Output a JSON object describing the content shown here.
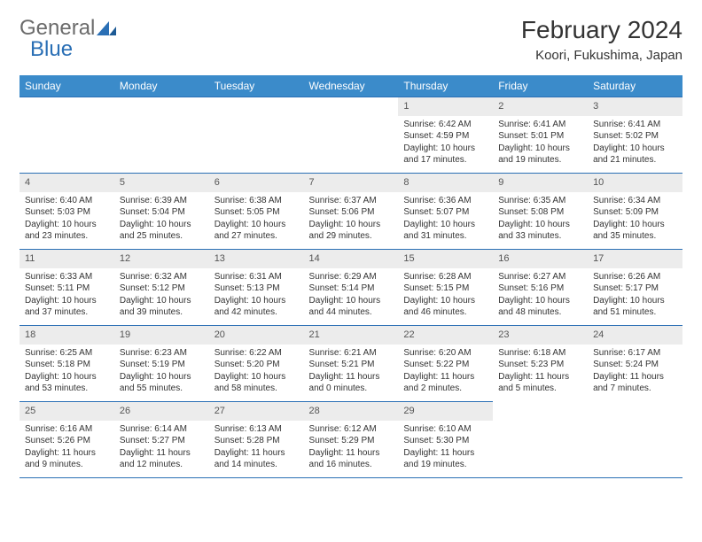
{
  "brand": {
    "part1": "General",
    "part2": "Blue"
  },
  "title": "February 2024",
  "location": "Koori, Fukushima, Japan",
  "colors": {
    "header_bg": "#3b8bca",
    "header_text": "#ffffff",
    "border": "#2a6fb5",
    "daynum_bg": "#ececec",
    "text": "#333333",
    "brand_gray": "#6b6b6b",
    "brand_blue": "#2a6fb5"
  },
  "weekdays": [
    "Sunday",
    "Monday",
    "Tuesday",
    "Wednesday",
    "Thursday",
    "Friday",
    "Saturday"
  ],
  "weeks": [
    [
      null,
      null,
      null,
      null,
      {
        "n": "1",
        "sr": "Sunrise: 6:42 AM",
        "ss": "Sunset: 4:59 PM",
        "dl": "Daylight: 10 hours and 17 minutes."
      },
      {
        "n": "2",
        "sr": "Sunrise: 6:41 AM",
        "ss": "Sunset: 5:01 PM",
        "dl": "Daylight: 10 hours and 19 minutes."
      },
      {
        "n": "3",
        "sr": "Sunrise: 6:41 AM",
        "ss": "Sunset: 5:02 PM",
        "dl": "Daylight: 10 hours and 21 minutes."
      }
    ],
    [
      {
        "n": "4",
        "sr": "Sunrise: 6:40 AM",
        "ss": "Sunset: 5:03 PM",
        "dl": "Daylight: 10 hours and 23 minutes."
      },
      {
        "n": "5",
        "sr": "Sunrise: 6:39 AM",
        "ss": "Sunset: 5:04 PM",
        "dl": "Daylight: 10 hours and 25 minutes."
      },
      {
        "n": "6",
        "sr": "Sunrise: 6:38 AM",
        "ss": "Sunset: 5:05 PM",
        "dl": "Daylight: 10 hours and 27 minutes."
      },
      {
        "n": "7",
        "sr": "Sunrise: 6:37 AM",
        "ss": "Sunset: 5:06 PM",
        "dl": "Daylight: 10 hours and 29 minutes."
      },
      {
        "n": "8",
        "sr": "Sunrise: 6:36 AM",
        "ss": "Sunset: 5:07 PM",
        "dl": "Daylight: 10 hours and 31 minutes."
      },
      {
        "n": "9",
        "sr": "Sunrise: 6:35 AM",
        "ss": "Sunset: 5:08 PM",
        "dl": "Daylight: 10 hours and 33 minutes."
      },
      {
        "n": "10",
        "sr": "Sunrise: 6:34 AM",
        "ss": "Sunset: 5:09 PM",
        "dl": "Daylight: 10 hours and 35 minutes."
      }
    ],
    [
      {
        "n": "11",
        "sr": "Sunrise: 6:33 AM",
        "ss": "Sunset: 5:11 PM",
        "dl": "Daylight: 10 hours and 37 minutes."
      },
      {
        "n": "12",
        "sr": "Sunrise: 6:32 AM",
        "ss": "Sunset: 5:12 PM",
        "dl": "Daylight: 10 hours and 39 minutes."
      },
      {
        "n": "13",
        "sr": "Sunrise: 6:31 AM",
        "ss": "Sunset: 5:13 PM",
        "dl": "Daylight: 10 hours and 42 minutes."
      },
      {
        "n": "14",
        "sr": "Sunrise: 6:29 AM",
        "ss": "Sunset: 5:14 PM",
        "dl": "Daylight: 10 hours and 44 minutes."
      },
      {
        "n": "15",
        "sr": "Sunrise: 6:28 AM",
        "ss": "Sunset: 5:15 PM",
        "dl": "Daylight: 10 hours and 46 minutes."
      },
      {
        "n": "16",
        "sr": "Sunrise: 6:27 AM",
        "ss": "Sunset: 5:16 PM",
        "dl": "Daylight: 10 hours and 48 minutes."
      },
      {
        "n": "17",
        "sr": "Sunrise: 6:26 AM",
        "ss": "Sunset: 5:17 PM",
        "dl": "Daylight: 10 hours and 51 minutes."
      }
    ],
    [
      {
        "n": "18",
        "sr": "Sunrise: 6:25 AM",
        "ss": "Sunset: 5:18 PM",
        "dl": "Daylight: 10 hours and 53 minutes."
      },
      {
        "n": "19",
        "sr": "Sunrise: 6:23 AM",
        "ss": "Sunset: 5:19 PM",
        "dl": "Daylight: 10 hours and 55 minutes."
      },
      {
        "n": "20",
        "sr": "Sunrise: 6:22 AM",
        "ss": "Sunset: 5:20 PM",
        "dl": "Daylight: 10 hours and 58 minutes."
      },
      {
        "n": "21",
        "sr": "Sunrise: 6:21 AM",
        "ss": "Sunset: 5:21 PM",
        "dl": "Daylight: 11 hours and 0 minutes."
      },
      {
        "n": "22",
        "sr": "Sunrise: 6:20 AM",
        "ss": "Sunset: 5:22 PM",
        "dl": "Daylight: 11 hours and 2 minutes."
      },
      {
        "n": "23",
        "sr": "Sunrise: 6:18 AM",
        "ss": "Sunset: 5:23 PM",
        "dl": "Daylight: 11 hours and 5 minutes."
      },
      {
        "n": "24",
        "sr": "Sunrise: 6:17 AM",
        "ss": "Sunset: 5:24 PM",
        "dl": "Daylight: 11 hours and 7 minutes."
      }
    ],
    [
      {
        "n": "25",
        "sr": "Sunrise: 6:16 AM",
        "ss": "Sunset: 5:26 PM",
        "dl": "Daylight: 11 hours and 9 minutes."
      },
      {
        "n": "26",
        "sr": "Sunrise: 6:14 AM",
        "ss": "Sunset: 5:27 PM",
        "dl": "Daylight: 11 hours and 12 minutes."
      },
      {
        "n": "27",
        "sr": "Sunrise: 6:13 AM",
        "ss": "Sunset: 5:28 PM",
        "dl": "Daylight: 11 hours and 14 minutes."
      },
      {
        "n": "28",
        "sr": "Sunrise: 6:12 AM",
        "ss": "Sunset: 5:29 PM",
        "dl": "Daylight: 11 hours and 16 minutes."
      },
      {
        "n": "29",
        "sr": "Sunrise: 6:10 AM",
        "ss": "Sunset: 5:30 PM",
        "dl": "Daylight: 11 hours and 19 minutes."
      },
      null,
      null
    ]
  ]
}
